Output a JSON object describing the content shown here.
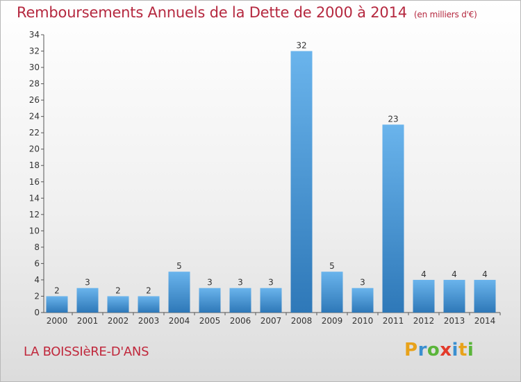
{
  "header": {
    "title": "Remboursements Annuels de la Dette de 2000 à 2014",
    "unit": "(en milliers d'€)"
  },
  "footer": {
    "commune": "LA BOISSIèRE-D'ANS"
  },
  "logo": {
    "letters": [
      "P",
      "r",
      "o",
      "x",
      "i",
      "t",
      "i"
    ],
    "colors": [
      "#e8a21a",
      "#3a8fd0",
      "#5ab53a",
      "#e33a2a",
      "#3a8fd0",
      "#e8a21a",
      "#5ab53a"
    ]
  },
  "colors": {
    "bar_light": "#6ab4ec",
    "bar_dark": "#2e78b8",
    "title": "#b5283f",
    "text": "#333333"
  },
  "chart_data": {
    "type": "bar",
    "categories": [
      "2000",
      "2001",
      "2002",
      "2003",
      "2004",
      "2005",
      "2006",
      "2007",
      "2008",
      "2009",
      "2010",
      "2011",
      "2012",
      "2013",
      "2014"
    ],
    "values": [
      2,
      3,
      2,
      2,
      5,
      3,
      3,
      3,
      32,
      5,
      3,
      23,
      4,
      4,
      4
    ],
    "data_labels": [
      "2",
      "3",
      "2",
      "2",
      "5",
      "3",
      "3",
      "3",
      "32",
      "5",
      "3",
      "23",
      "4",
      "4",
      "4"
    ],
    "y_ticks": [
      0,
      2,
      4,
      6,
      8,
      10,
      12,
      14,
      16,
      18,
      20,
      22,
      24,
      26,
      28,
      30,
      32,
      34
    ],
    "ylim": [
      0,
      34
    ],
    "grid": false
  }
}
